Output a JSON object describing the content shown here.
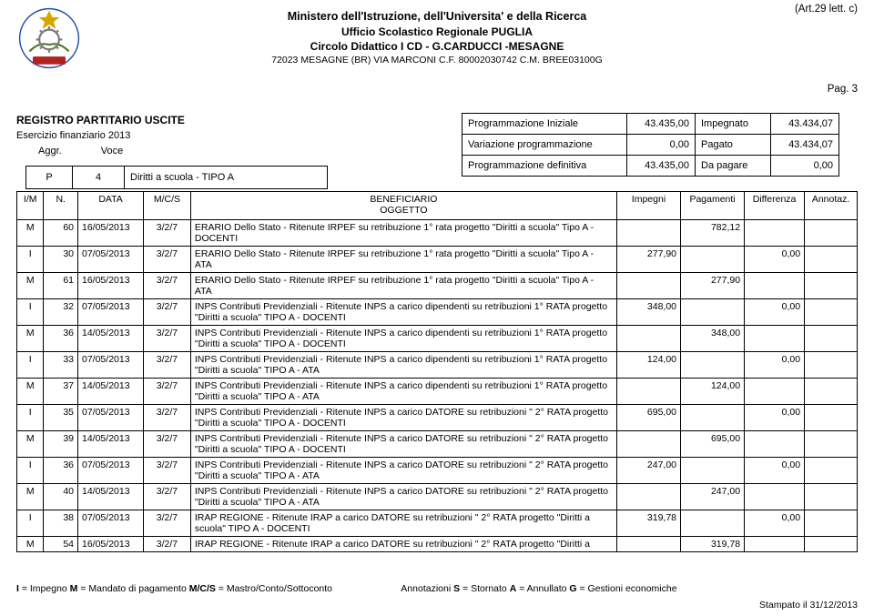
{
  "colors": {
    "text": "#000000",
    "background": "#ffffff",
    "border": "#000000",
    "emblem_blue": "#1f4fa6",
    "emblem_green": "#4a7d2a",
    "emblem_red": "#b22222",
    "emblem_gold": "#d6a600",
    "emblem_white": "#ffffff"
  },
  "top_right": "(Art.29 lett. c)",
  "header": {
    "line1": "Ministero dell'Istruzione, dell'Universita' e della Ricerca",
    "line2": "Ufficio Scolastico Regionale PUGLIA",
    "line3": "Circolo Didattico I CD - G.CARDUCCI -MESAGNE",
    "line4": "72023 MESAGNE (BR) VIA MARCONI C.F. 80002030742 C.M. BREE03100G"
  },
  "pag": "Pag. 3",
  "reg": {
    "title": "REGISTRO PARTITARIO USCITE",
    "eser": "Esercizio finanziario 2013",
    "aggr_label": "Aggr.",
    "voce_label": "Voce"
  },
  "pv": {
    "c1": "P",
    "c2": "4",
    "c3": "Diritti a scuola - TIPO A"
  },
  "summary": {
    "rows": [
      {
        "k": "Programmazione Iniziale",
        "v": "43.435,00",
        "k2": "Impegnato",
        "v2": "43.434,07"
      },
      {
        "k": "Variazione programmazione",
        "v": "0,00",
        "k2": "Pagato",
        "v2": "43.434,07"
      },
      {
        "k": "Programmazione definitiva",
        "v": "43.435,00",
        "k2": "Da pagare",
        "v2": "0,00"
      }
    ]
  },
  "table": {
    "headers": {
      "im": "I/M",
      "n": "N.",
      "data": "DATA",
      "mcs": "M/C/S",
      "ben": "BENEFICIARIO\nOGGETTO",
      "imp": "Impegni",
      "pag": "Pagamenti",
      "diff": "Differenza",
      "ann": "Annotaz."
    },
    "rows": [
      {
        "im": "M",
        "n": "60",
        "data": "16/05/2013",
        "mcs": "3/2/7",
        "ben": "ERARIO Dello Stato - Ritenute IRPEF su retribuzione 1° rata progetto \"Diritti a scuola\" Tipo A - DOCENTI",
        "imp": "",
        "pag": "782,12",
        "diff": "",
        "ann": ""
      },
      {
        "im": "I",
        "n": "30",
        "data": "07/05/2013",
        "mcs": "3/2/7",
        "ben": "ERARIO Dello Stato - Ritenute IRPEF  su retribuzione 1° rata progetto \"Diritti a scuola\" Tipo A - ATA",
        "imp": "277,90",
        "pag": "",
        "diff": "0,00",
        "ann": ""
      },
      {
        "im": "M",
        "n": "61",
        "data": "16/05/2013",
        "mcs": "3/2/7",
        "ben": "ERARIO Dello Stato - Ritenute IRPEF  su retribuzione 1° rata progetto \"Diritti a scuola\" Tipo A - ATA",
        "imp": "",
        "pag": "277,90",
        "diff": "",
        "ann": ""
      },
      {
        "im": "I",
        "n": "32",
        "data": "07/05/2013",
        "mcs": "3/2/7",
        "ben": "INPS Contributi Previdenziali - Ritenute INPS a carico dipendenti su retribuzioni 1° RATA progetto \"Diritti a scuola\" TIPO A - DOCENTI",
        "imp": "348,00",
        "pag": "",
        "diff": "0,00",
        "ann": ""
      },
      {
        "im": "M",
        "n": "36",
        "data": "14/05/2013",
        "mcs": "3/2/7",
        "ben": "INPS Contributi Previdenziali - Ritenute INPS a carico dipendenti su retribuzioni 1° RATA progetto \"Diritti a scuola\" TIPO A - DOCENTI",
        "imp": "",
        "pag": "348,00",
        "diff": "",
        "ann": ""
      },
      {
        "im": "I",
        "n": "33",
        "data": "07/05/2013",
        "mcs": "3/2/7",
        "ben": "INPS Contributi Previdenziali - Ritenute INPS a carico dipendenti su retribuzioni 1° RATA progetto \"Diritti a scuola\" TIPO A - ATA",
        "imp": "124,00",
        "pag": "",
        "diff": "0,00",
        "ann": ""
      },
      {
        "im": "M",
        "n": "37",
        "data": "14/05/2013",
        "mcs": "3/2/7",
        "ben": "INPS Contributi Previdenziali - Ritenute INPS a carico dipendenti su retribuzioni 1° RATA progetto \"Diritti a scuola\" TIPO A - ATA",
        "imp": "",
        "pag": "124,00",
        "diff": "",
        "ann": ""
      },
      {
        "im": "I",
        "n": "35",
        "data": "07/05/2013",
        "mcs": "3/2/7",
        "ben": "INPS Contributi Previdenziali - Ritenute INPS a carico DATORE su retribuzioni \" 2° RATA progetto \"Diritti a scuola\" TIPO A - DOCENTI",
        "imp": "695,00",
        "pag": "",
        "diff": "0,00",
        "ann": ""
      },
      {
        "im": "M",
        "n": "39",
        "data": "14/05/2013",
        "mcs": "3/2/7",
        "ben": "INPS Contributi Previdenziali - Ritenute INPS a carico DATORE su retribuzioni \" 2° RATA progetto \"Diritti a scuola\" TIPO A - DOCENTI",
        "imp": "",
        "pag": "695,00",
        "diff": "",
        "ann": ""
      },
      {
        "im": "I",
        "n": "36",
        "data": "07/05/2013",
        "mcs": "3/2/7",
        "ben": "INPS Contributi Previdenziali - Ritenute INPS a carico DATORE su retribuzioni \" 2° RATA progetto \"Diritti a scuola\" TIPO A - ATA",
        "imp": "247,00",
        "pag": "",
        "diff": "0,00",
        "ann": ""
      },
      {
        "im": "M",
        "n": "40",
        "data": "14/05/2013",
        "mcs": "3/2/7",
        "ben": "INPS Contributi Previdenziali - Ritenute INPS a carico DATORE su retribuzioni \" 2° RATA progetto \"Diritti a scuola\" TIPO A - ATA",
        "imp": "",
        "pag": "247,00",
        "diff": "",
        "ann": ""
      },
      {
        "im": "I",
        "n": "38",
        "data": "07/05/2013",
        "mcs": "3/2/7",
        "ben": "IRAP REGIONE - Ritenute IRAP a carico DATORE su retribuzioni \" 2° RATA progetto \"Diritti a scuola\" TIPO A - DOCENTI",
        "imp": "319,78",
        "pag": "",
        "diff": "0,00",
        "ann": ""
      },
      {
        "im": "M",
        "n": "54",
        "data": "16/05/2013",
        "mcs": "3/2/7",
        "ben": "IRAP REGIONE - Ritenute IRAP a carico DATORE su retribuzioni \" 2° RATA progetto \"Diritti a",
        "imp": "",
        "pag": "319,78",
        "diff": "",
        "ann": ""
      }
    ]
  },
  "legend": {
    "i": "I",
    "i_txt": " = Impegno   ",
    "m": "M",
    "m_txt": " = Mandato di pagamento   ",
    "mcs": "M/C/S",
    "mcs_txt": " = Mastro/Conto/Sottoconto",
    "ann_lead": "Annotazioni ",
    "s": "S",
    "s_txt": " = Stornato  ",
    "a": "A",
    "a_txt": " = Annullato  ",
    "g": "G",
    "g_txt": " = Gestioni economiche"
  },
  "stamp": "Stampato il 31/12/2013"
}
